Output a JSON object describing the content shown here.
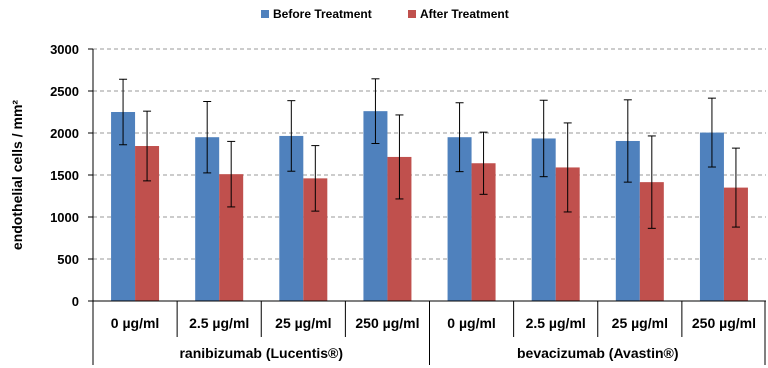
{
  "chart_data": {
    "type": "bar",
    "ylabel": "endothelial cells / mm²",
    "ylim": [
      0,
      3000
    ],
    "yticks": [
      "0",
      "500",
      "1000",
      "1500",
      "2000",
      "2500",
      "3000"
    ],
    "grid": "horizontal dashed",
    "legend_position": "top-center",
    "colors": {
      "Before Treatment": "#4f81bd",
      "After Treatment": "#c0504d"
    },
    "categories": [
      "0 µg/ml",
      "2.5 µg/ml",
      "25 µg/ml",
      "250 µg/ml",
      "0 µg/ml",
      "2.5 µg/ml",
      "25 µg/ml",
      "250 µg/ml"
    ],
    "groups": [
      {
        "label": "ranibizumab (Lucentis®)",
        "categories": [
          0,
          1,
          2,
          3
        ]
      },
      {
        "label": "bevacizumab (Avastin®)",
        "categories": [
          4,
          5,
          6,
          7
        ]
      }
    ],
    "series": [
      {
        "name": "Before Treatment",
        "values": [
          2250,
          1950,
          1965,
          2260,
          1950,
          1935,
          1905,
          2005
        ],
        "errors": [
          390,
          425,
          420,
          385,
          410,
          455,
          490,
          410
        ]
      },
      {
        "name": "After Treatment",
        "values": [
          1845,
          1510,
          1460,
          1715,
          1640,
          1590,
          1415,
          1350
        ],
        "errors": [
          415,
          390,
          390,
          500,
          370,
          530,
          550,
          470
        ]
      }
    ]
  }
}
